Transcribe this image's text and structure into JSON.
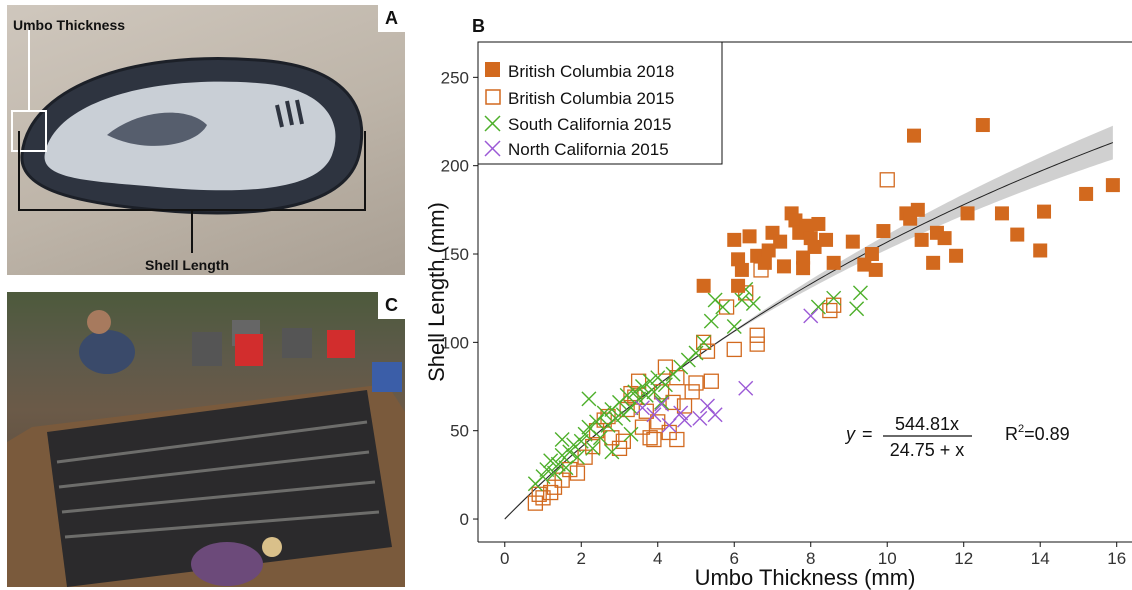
{
  "panels": {
    "a": {
      "letter": "A",
      "umbo_label": "Umbo Thickness",
      "length_label": "Shell Length"
    },
    "b": {
      "letter": "B"
    },
    "c": {
      "letter": "C"
    }
  },
  "chart_data": {
    "type": "scatter",
    "xlabel": "Umbo Thickness (mm)",
    "ylabel": "Shell Length (mm)",
    "xlim": [
      -0.7,
      16.4
    ],
    "ylim": [
      -13,
      270
    ],
    "xticks": [
      0,
      2,
      4,
      6,
      8,
      10,
      12,
      14,
      16
    ],
    "yticks": [
      0,
      50,
      100,
      150,
      200,
      250
    ],
    "grid": false,
    "legend_position": "top-left",
    "series": [
      {
        "name": "British Columbia 2018",
        "marker": "filled-square",
        "color": "#D2691E",
        "points": [
          [
            5.2,
            132
          ],
          [
            6.0,
            158
          ],
          [
            6.1,
            147
          ],
          [
            6.2,
            141
          ],
          [
            6.1,
            132
          ],
          [
            6.4,
            160
          ],
          [
            6.6,
            149
          ],
          [
            6.8,
            145
          ],
          [
            6.9,
            152
          ],
          [
            7.0,
            162
          ],
          [
            7.2,
            157
          ],
          [
            7.3,
            143
          ],
          [
            7.5,
            173
          ],
          [
            7.6,
            169
          ],
          [
            7.7,
            162
          ],
          [
            7.8,
            148
          ],
          [
            7.9,
            166
          ],
          [
            8.0,
            159
          ],
          [
            8.1,
            154
          ],
          [
            7.8,
            142
          ],
          [
            8.2,
            167
          ],
          [
            8.4,
            158
          ],
          [
            8.6,
            145
          ],
          [
            9.1,
            157
          ],
          [
            9.4,
            144
          ],
          [
            9.6,
            150
          ],
          [
            9.7,
            141
          ],
          [
            9.9,
            163
          ],
          [
            10.5,
            173
          ],
          [
            10.6,
            170
          ],
          [
            10.7,
            217
          ],
          [
            10.8,
            175
          ],
          [
            10.9,
            158
          ],
          [
            11.2,
            145
          ],
          [
            11.3,
            162
          ],
          [
            11.5,
            159
          ],
          [
            11.8,
            149
          ],
          [
            12.1,
            173
          ],
          [
            12.5,
            223
          ],
          [
            13.0,
            173
          ],
          [
            13.4,
            161
          ],
          [
            14.0,
            152
          ],
          [
            14.1,
            174
          ],
          [
            15.2,
            184
          ],
          [
            15.9,
            189
          ]
        ]
      },
      {
        "name": "British Columbia 2015",
        "marker": "open-square",
        "color": "#D2691E",
        "points": [
          [
            0.8,
            9
          ],
          [
            0.9,
            14
          ],
          [
            1.0,
            12
          ],
          [
            1.2,
            15
          ],
          [
            1.3,
            18
          ],
          [
            1.5,
            22
          ],
          [
            1.7,
            28
          ],
          [
            1.9,
            26
          ],
          [
            2.1,
            35
          ],
          [
            2.3,
            41
          ],
          [
            2.4,
            50
          ],
          [
            2.6,
            56
          ],
          [
            2.7,
            58
          ],
          [
            2.8,
            46
          ],
          [
            3.0,
            40
          ],
          [
            3.1,
            44
          ],
          [
            3.2,
            62
          ],
          [
            3.3,
            71
          ],
          [
            3.4,
            69
          ],
          [
            3.5,
            78
          ],
          [
            3.6,
            52
          ],
          [
            3.7,
            61
          ],
          [
            3.8,
            46
          ],
          [
            3.9,
            45
          ],
          [
            4.0,
            55
          ],
          [
            4.1,
            72
          ],
          [
            4.2,
            86
          ],
          [
            4.3,
            49
          ],
          [
            4.4,
            66
          ],
          [
            4.5,
            80
          ],
          [
            4.7,
            64
          ],
          [
            4.9,
            72
          ],
          [
            5.0,
            77
          ],
          [
            5.2,
            100
          ],
          [
            5.3,
            95
          ],
          [
            5.4,
            78
          ],
          [
            5.8,
            120
          ],
          [
            6.0,
            96
          ],
          [
            6.3,
            128
          ],
          [
            6.6,
            104
          ],
          [
            6.6,
            99
          ],
          [
            6.7,
            141
          ],
          [
            8.5,
            118
          ],
          [
            8.6,
            121
          ],
          [
            10.0,
            192
          ],
          [
            4.5,
            45
          ]
        ]
      },
      {
        "name": "South California 2015",
        "marker": "x",
        "color": "#4DAF2A",
        "points": [
          [
            0.8,
            20
          ],
          [
            1.0,
            24
          ],
          [
            1.1,
            28
          ],
          [
            1.2,
            33
          ],
          [
            1.3,
            26
          ],
          [
            1.4,
            31
          ],
          [
            1.5,
            36
          ],
          [
            1.6,
            29
          ],
          [
            1.7,
            38
          ],
          [
            1.8,
            42
          ],
          [
            1.9,
            35
          ],
          [
            2.0,
            44
          ],
          [
            2.1,
            48
          ],
          [
            2.2,
            52
          ],
          [
            2.3,
            40
          ],
          [
            2.4,
            55
          ],
          [
            2.5,
            46
          ],
          [
            2.6,
            60
          ],
          [
            2.7,
            53
          ],
          [
            2.8,
            62
          ],
          [
            2.9,
            57
          ],
          [
            3.0,
            66
          ],
          [
            3.1,
            59
          ],
          [
            3.2,
            70
          ],
          [
            3.3,
            63
          ],
          [
            3.4,
            72
          ],
          [
            3.5,
            68
          ],
          [
            3.6,
            75
          ],
          [
            3.7,
            70
          ],
          [
            3.8,
            78
          ],
          [
            3.9,
            72
          ],
          [
            4.0,
            80
          ],
          [
            4.2,
            76
          ],
          [
            4.4,
            82
          ],
          [
            4.6,
            86
          ],
          [
            4.8,
            90
          ],
          [
            5.0,
            94
          ],
          [
            5.2,
            100
          ],
          [
            5.4,
            112
          ],
          [
            5.5,
            124
          ],
          [
            5.7,
            120
          ],
          [
            6.0,
            109
          ],
          [
            6.2,
            124
          ],
          [
            6.3,
            130
          ],
          [
            6.5,
            122
          ],
          [
            2.2,
            68
          ],
          [
            1.5,
            45
          ],
          [
            2.8,
            38
          ],
          [
            4.1,
            66
          ],
          [
            3.3,
            48
          ],
          [
            8.6,
            125
          ],
          [
            9.2,
            119
          ],
          [
            9.3,
            128
          ],
          [
            8.2,
            120
          ]
        ]
      },
      {
        "name": "North California 2015",
        "marker": "x",
        "color": "#9B59D6",
        "points": [
          [
            3.6,
            63
          ],
          [
            3.9,
            59
          ],
          [
            4.1,
            65
          ],
          [
            4.3,
            53
          ],
          [
            4.6,
            60
          ],
          [
            4.7,
            56
          ],
          [
            5.1,
            57
          ],
          [
            5.3,
            64
          ],
          [
            5.5,
            59
          ],
          [
            6.3,
            74
          ],
          [
            8.0,
            115
          ]
        ]
      }
    ],
    "fit": {
      "formula_y": "y",
      "formula_eq": "=",
      "numerator": "544.81x",
      "denominator": "24.75 + x",
      "r2_prefix": "R",
      "r2_exp": "2",
      "r2_value": "=0.89",
      "a": 544.81,
      "b": 24.75
    }
  }
}
